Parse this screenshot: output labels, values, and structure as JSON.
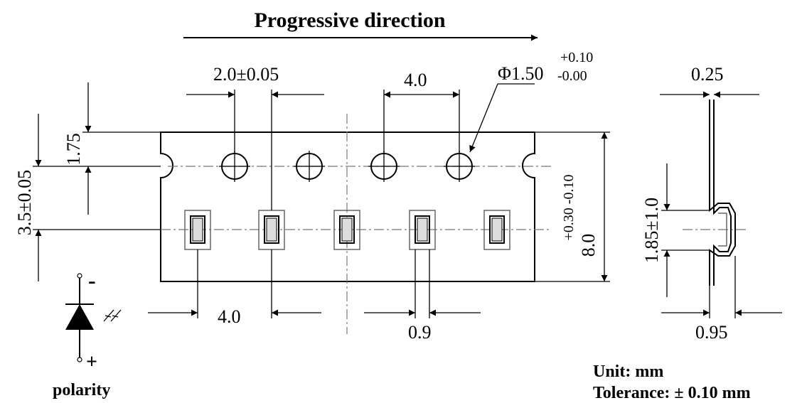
{
  "title": "Progressive direction",
  "dimensions": {
    "hole_offset": "2.0±0.05",
    "sprocket_pitch": "4.0",
    "hole_diameter": "Φ1.50",
    "hole_tol_plus": "+0.10",
    "hole_tol_minus": "-0.00",
    "edge_to_holes": "1.75",
    "hole_to_pocket": "3.5±0.05",
    "tape_width": "8.0",
    "tape_width_tol": "+0.30 -0.10",
    "pocket_pitch": "4.0",
    "pocket_width": "0.9",
    "tape_thickness": "0.25",
    "pocket_depth": "1.85±1.0",
    "cover_height": "0.95"
  },
  "polarity": {
    "label": "polarity",
    "minus": "-",
    "plus": "+"
  },
  "notes": {
    "unit": "Unit: mm",
    "tolerance": "Tolerance: ± 0.10 mm"
  }
}
